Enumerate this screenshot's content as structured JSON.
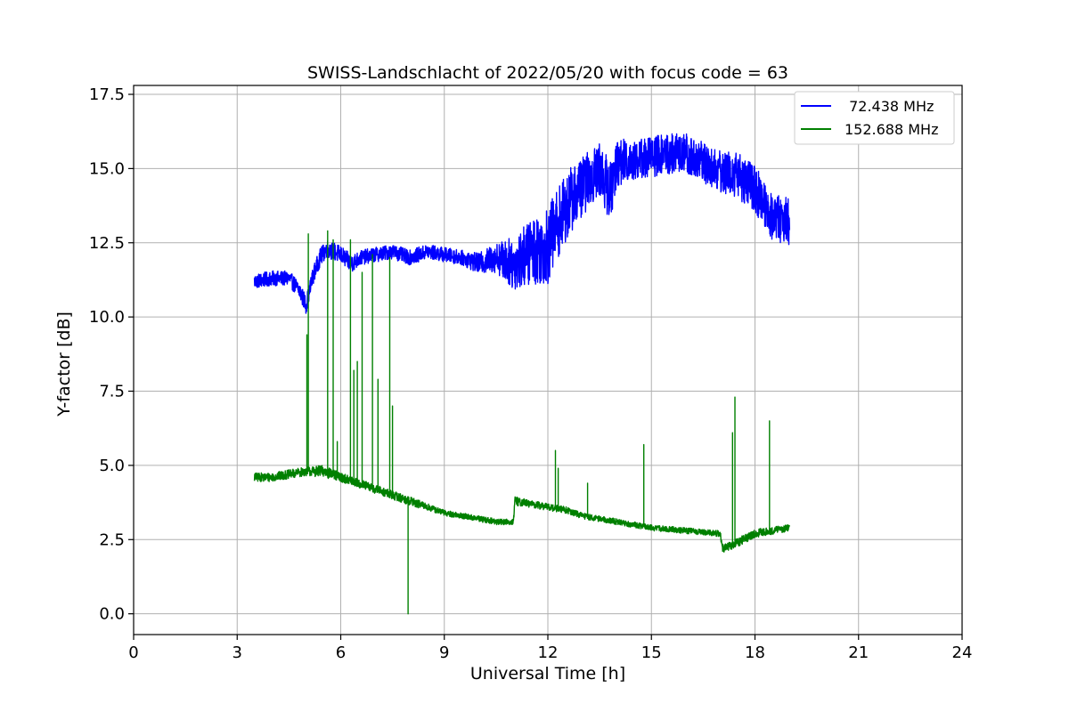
{
  "chart_data": {
    "type": "line",
    "title": "SWISS-Landschlacht of 2022/05/20 with focus code = 63",
    "xlabel": "Universal Time [h]",
    "ylabel": "Y-factor [dB]",
    "xlim": [
      0,
      24
    ],
    "ylim": [
      -0.7,
      17.8
    ],
    "xticks": [
      0,
      3,
      6,
      9,
      12,
      15,
      18,
      21,
      24
    ],
    "xtick_labels": [
      "0",
      "3",
      "6",
      "9",
      "12",
      "15",
      "18",
      "21",
      "24"
    ],
    "yticks": [
      0.0,
      2.5,
      5.0,
      7.5,
      10.0,
      12.5,
      15.0,
      17.5
    ],
    "ytick_labels": [
      "0.0",
      "2.5",
      "5.0",
      "7.5",
      "10.0",
      "12.5",
      "15.0",
      "17.5"
    ],
    "grid": true,
    "legend_position": "top-right",
    "series": [
      {
        "name": " 72.438 MHz",
        "color": "#0000ff",
        "x": [
          3.5,
          4.0,
          4.5,
          4.8,
          5.0,
          5.2,
          5.4,
          5.6,
          6.0,
          6.3,
          6.6,
          7.0,
          7.5,
          8.0,
          8.5,
          9.0,
          9.5,
          10.0,
          10.5,
          11.0,
          11.5,
          12.0,
          12.3,
          12.7,
          13.0,
          13.5,
          13.8,
          14.0,
          14.5,
          15.0,
          15.5,
          16.0,
          16.5,
          17.0,
          17.5,
          18.0,
          18.5,
          19.0
        ],
        "y": [
          11.2,
          11.3,
          11.3,
          10.9,
          10.4,
          11.4,
          12.0,
          12.3,
          12.1,
          11.8,
          12.0,
          12.1,
          12.2,
          12.0,
          12.2,
          12.1,
          12.0,
          11.8,
          12.0,
          11.8,
          12.2,
          12.4,
          13.2,
          14.0,
          14.4,
          15.0,
          14.2,
          15.2,
          15.3,
          15.4,
          15.5,
          15.5,
          15.2,
          14.9,
          14.8,
          14.3,
          13.4,
          13.2
        ],
        "noise": [
          0.25,
          0.25,
          0.25,
          0.3,
          0.3,
          0.3,
          0.3,
          0.3,
          0.3,
          0.3,
          0.25,
          0.25,
          0.25,
          0.25,
          0.25,
          0.25,
          0.25,
          0.35,
          0.5,
          0.9,
          1.1,
          1.3,
          1.2,
          1.1,
          1.0,
          0.9,
          1.0,
          0.8,
          0.7,
          0.7,
          0.7,
          0.7,
          0.7,
          0.7,
          0.8,
          0.8,
          0.8,
          0.8
        ],
        "spikes": [
          {
            "x": 7.95,
            "y": 11.8
          }
        ]
      },
      {
        "name": "152.688 MHz",
        "color": "#008000",
        "x": [
          3.5,
          4.0,
          4.5,
          5.0,
          5.5,
          6.0,
          6.5,
          7.0,
          7.5,
          8.0,
          8.5,
          9.0,
          9.5,
          10.0,
          10.5,
          11.0,
          11.05,
          11.5,
          12.0,
          12.5,
          13.0,
          13.5,
          14.0,
          14.5,
          15.0,
          15.5,
          16.0,
          16.5,
          17.0,
          17.05,
          17.5,
          18.0,
          18.5,
          19.0
        ],
        "y": [
          4.6,
          4.6,
          4.7,
          4.8,
          4.8,
          4.6,
          4.4,
          4.2,
          4.0,
          3.8,
          3.6,
          3.4,
          3.3,
          3.2,
          3.1,
          3.1,
          3.8,
          3.7,
          3.6,
          3.5,
          3.3,
          3.2,
          3.1,
          3.0,
          2.9,
          2.85,
          2.8,
          2.75,
          2.7,
          2.2,
          2.4,
          2.7,
          2.8,
          2.9
        ],
        "noise": [
          0.15,
          0.15,
          0.15,
          0.15,
          0.2,
          0.15,
          0.15,
          0.15,
          0.15,
          0.15,
          0.12,
          0.1,
          0.1,
          0.1,
          0.1,
          0.1,
          0.15,
          0.12,
          0.12,
          0.12,
          0.1,
          0.1,
          0.1,
          0.1,
          0.1,
          0.1,
          0.1,
          0.1,
          0.1,
          0.15,
          0.15,
          0.15,
          0.12,
          0.12
        ],
        "spikes": [
          {
            "x": 5.02,
            "y": 9.4
          },
          {
            "x": 5.06,
            "y": 12.8
          },
          {
            "x": 5.62,
            "y": 12.9
          },
          {
            "x": 5.78,
            "y": 12.6
          },
          {
            "x": 5.9,
            "y": 5.8
          },
          {
            "x": 6.28,
            "y": 12.6
          },
          {
            "x": 6.38,
            "y": 8.2
          },
          {
            "x": 6.48,
            "y": 8.5
          },
          {
            "x": 6.62,
            "y": 11.5
          },
          {
            "x": 6.92,
            "y": 12.1
          },
          {
            "x": 7.08,
            "y": 7.9
          },
          {
            "x": 7.42,
            "y": 12.0
          },
          {
            "x": 7.5,
            "y": 7.0
          },
          {
            "x": 7.95,
            "y": 0.0
          },
          {
            "x": 12.22,
            "y": 5.5
          },
          {
            "x": 12.3,
            "y": 4.9
          },
          {
            "x": 13.15,
            "y": 4.4
          },
          {
            "x": 14.78,
            "y": 5.7
          },
          {
            "x": 17.35,
            "y": 6.1
          },
          {
            "x": 17.42,
            "y": 7.3
          },
          {
            "x": 18.42,
            "y": 6.5
          }
        ]
      }
    ]
  }
}
